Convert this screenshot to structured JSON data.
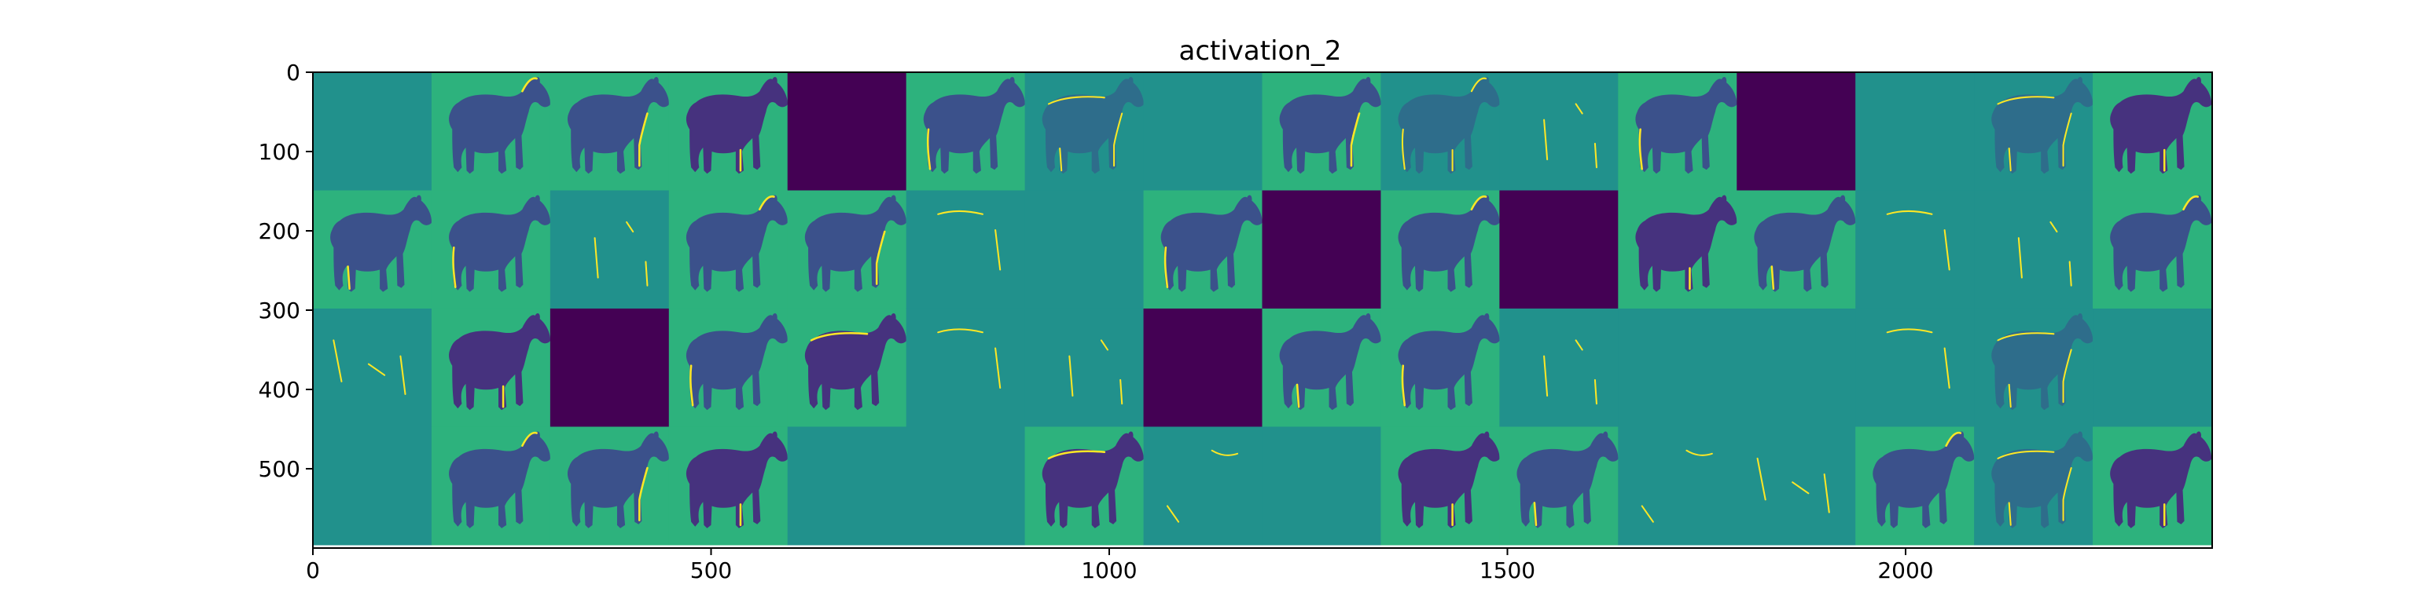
{
  "chart_data": {
    "type": "heatmap",
    "title": "activation_2",
    "xlabel": "",
    "ylabel": "",
    "colormap": "viridis",
    "xlim": [
      0,
      2385
    ],
    "ylim": [
      600,
      0
    ],
    "x_ticks": [
      0,
      500,
      1000,
      1500,
      2000
    ],
    "y_ticks": [
      0,
      100,
      200,
      300,
      400,
      500
    ],
    "x_tick_labels": [
      "0",
      "500",
      "1000",
      "1500",
      "2000"
    ],
    "y_tick_labels": [
      "0",
      "100",
      "200",
      "300",
      "400",
      "500"
    ],
    "grid": false,
    "tile_rows": 4,
    "tile_cols": 16,
    "tile_size": 149,
    "tiles": [
      [
        "flat",
        "horse",
        "horse",
        "horse",
        "dark",
        "horse",
        "edge",
        "flat",
        "horse",
        "edge",
        "sparse",
        "horse",
        "dark",
        "flat",
        "edge",
        "horse"
      ],
      [
        "horse",
        "horse",
        "sparse",
        "horse",
        "horse",
        "sparse",
        "flat",
        "horse",
        "dark",
        "horse",
        "dark",
        "horse",
        "horse",
        "sparse",
        "sparse",
        "horse"
      ],
      [
        "sparse",
        "horse",
        "dark",
        "horse",
        "horse",
        "sparse",
        "sparse",
        "dark",
        "horse",
        "horse",
        "sparse",
        "flat",
        "flat",
        "sparse",
        "edge",
        "flat"
      ],
      [
        "flat",
        "horse",
        "horse",
        "horse",
        "flat",
        "flat",
        "horse",
        "sparse",
        "flat",
        "horse",
        "horse",
        "sparse",
        "sparse",
        "horse",
        "edge",
        "horse"
      ]
    ]
  },
  "colors": {
    "bright_background": "#2db27d",
    "mid_background": "#21918c",
    "dark": "#440154",
    "horse_body": "#3b518b",
    "horse_dark": "#46327e",
    "highlight": "#fde725",
    "axis": "#000000"
  }
}
